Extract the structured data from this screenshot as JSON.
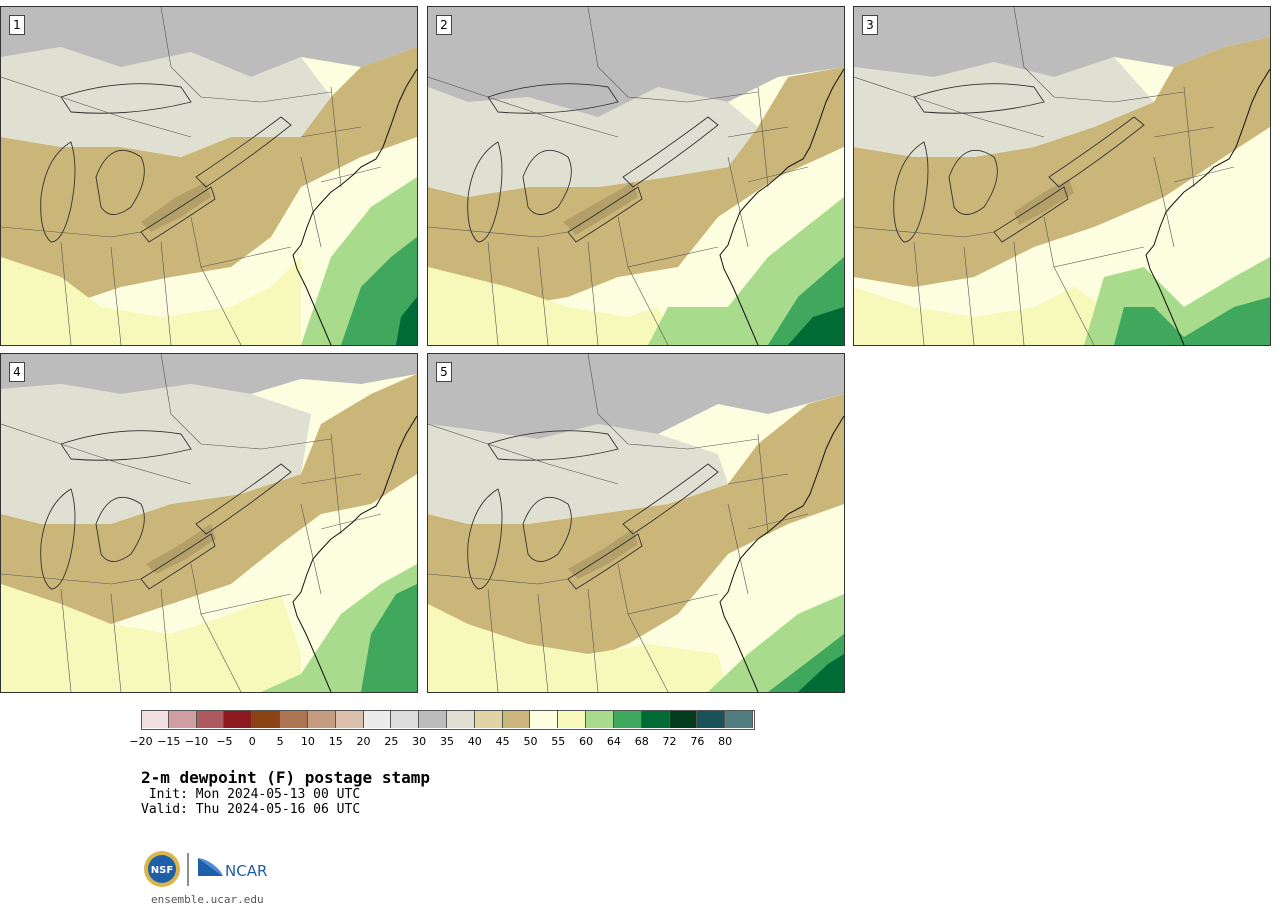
{
  "panels": [
    {
      "number": "1"
    },
    {
      "number": "2"
    },
    {
      "number": "3"
    },
    {
      "number": "4"
    },
    {
      "number": "5"
    }
  ],
  "colorbar": {
    "labels": [
      "−20",
      "−15",
      "−10",
      "−5",
      "0",
      "5",
      "10",
      "15",
      "20",
      "25",
      "30",
      "35",
      "40",
      "45",
      "50",
      "55",
      "60",
      "64",
      "68",
      "72",
      "76",
      "80"
    ],
    "colors": [
      "#f0e0e0",
      "#d09ea0",
      "#ad5a5e",
      "#8c1a1e",
      "#8a4414",
      "#ab7552",
      "#c49c80",
      "#dcc0ae",
      "#ececec",
      "#dcdcdc",
      "#bcbcbc",
      "#dfdfd2",
      "#e0d3a6",
      "#cbb679",
      "#fdfde0",
      "#f6f9b9",
      "#a8db8c",
      "#3fa85c",
      "#006b34",
      "#003d1f",
      "#1b5257",
      "#4f7d80"
    ]
  },
  "palette": {
    "gray": "#bcbcbc",
    "lightgray": "#dfdfd2",
    "beige": "#e0d3a6",
    "tan": "#cbb679",
    "brown": "#b3a068",
    "cream": "#fdfde0",
    "yellow": "#f6f9b9",
    "lightgreen": "#a8db8c",
    "green": "#3fa85c",
    "darkgreen": "#006b34"
  },
  "title": "2-m dewpoint (F) postage stamp",
  "init": " Init: Mon 2024-05-13 00 UTC",
  "valid": "Valid: Thu 2024-05-16 06 UTC",
  "logo": {
    "nsf": "NSF",
    "ncar": "NCAR"
  },
  "site": "ensemble.ucar.edu"
}
